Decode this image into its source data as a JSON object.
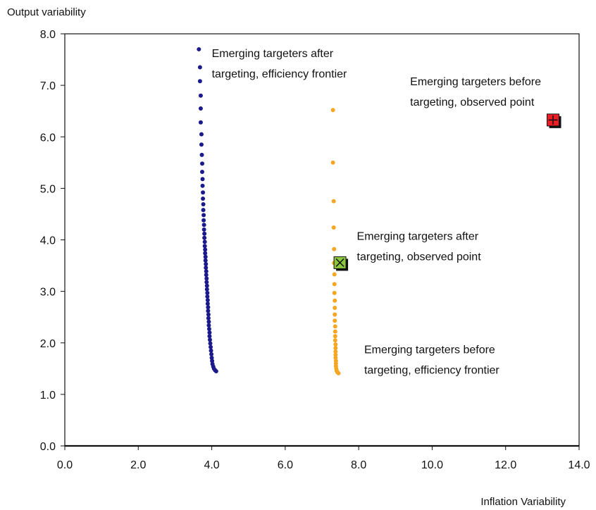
{
  "chart_data": {
    "type": "scatter",
    "title": "",
    "xlabel": "Inflation Variability",
    "ylabel": "Output variability",
    "xlim": [
      0,
      14
    ],
    "ylim": [
      0,
      8
    ],
    "x_ticks": [
      "0.0",
      "2.0",
      "4.0",
      "6.0",
      "8.0",
      "10.0",
      "12.0",
      "14.0"
    ],
    "y_ticks": [
      "0.0",
      "1.0",
      "2.0",
      "3.0",
      "4.0",
      "5.0",
      "6.0",
      "7.0",
      "8.0"
    ],
    "grid": false,
    "legend": "none",
    "series": [
      {
        "name": "Emerging targeters after targeting, efficiency frontier",
        "color": "#1a1a8c",
        "marker": "circle",
        "points": [
          [
            3.65,
            7.7
          ],
          [
            3.68,
            7.35
          ],
          [
            3.68,
            7.08
          ],
          [
            3.7,
            6.8
          ],
          [
            3.7,
            6.55
          ],
          [
            3.7,
            6.28
          ],
          [
            3.72,
            6.05
          ],
          [
            3.72,
            5.85
          ],
          [
            3.73,
            5.65
          ],
          [
            3.74,
            5.48
          ],
          [
            3.74,
            5.32
          ],
          [
            3.75,
            5.18
          ],
          [
            3.75,
            5.05
          ],
          [
            3.76,
            4.92
          ],
          [
            3.76,
            4.8
          ],
          [
            3.77,
            4.69
          ],
          [
            3.77,
            4.58
          ],
          [
            3.78,
            4.48
          ],
          [
            3.78,
            4.38
          ],
          [
            3.79,
            4.29
          ],
          [
            3.79,
            4.2
          ],
          [
            3.8,
            4.12
          ],
          [
            3.8,
            4.04
          ],
          [
            3.81,
            3.96
          ],
          [
            3.81,
            3.88
          ],
          [
            3.82,
            3.81
          ],
          [
            3.82,
            3.74
          ],
          [
            3.83,
            3.67
          ],
          [
            3.83,
            3.6
          ],
          [
            3.84,
            3.53
          ],
          [
            3.84,
            3.46
          ],
          [
            3.85,
            3.39
          ],
          [
            3.85,
            3.32
          ],
          [
            3.86,
            3.25
          ],
          [
            3.86,
            3.18
          ],
          [
            3.87,
            3.11
          ],
          [
            3.87,
            3.04
          ],
          [
            3.88,
            2.97
          ],
          [
            3.88,
            2.9
          ],
          [
            3.89,
            2.83
          ],
          [
            3.89,
            2.76
          ],
          [
            3.9,
            2.69
          ],
          [
            3.9,
            2.62
          ],
          [
            3.91,
            2.55
          ],
          [
            3.91,
            2.48
          ],
          [
            3.92,
            2.41
          ],
          [
            3.92,
            2.34
          ],
          [
            3.93,
            2.27
          ],
          [
            3.94,
            2.2
          ],
          [
            3.94,
            2.13
          ],
          [
            3.95,
            2.06
          ],
          [
            3.96,
            1.99
          ],
          [
            3.97,
            1.92
          ],
          [
            3.98,
            1.85
          ],
          [
            3.99,
            1.78
          ],
          [
            4.0,
            1.71
          ],
          [
            4.01,
            1.65
          ],
          [
            4.02,
            1.59
          ],
          [
            4.04,
            1.54
          ],
          [
            4.06,
            1.5
          ],
          [
            4.09,
            1.47
          ],
          [
            4.12,
            1.45
          ]
        ]
      },
      {
        "name": "Emerging targeters before targeting, efficiency frontier",
        "color": "#f5a623",
        "marker": "circle",
        "points": [
          [
            7.3,
            6.52
          ],
          [
            7.3,
            5.5
          ],
          [
            7.32,
            4.75
          ],
          [
            7.32,
            4.24
          ],
          [
            7.33,
            3.82
          ],
          [
            7.33,
            3.55
          ],
          [
            7.34,
            3.33
          ],
          [
            7.34,
            3.14
          ],
          [
            7.34,
            2.97
          ],
          [
            7.35,
            2.82
          ],
          [
            7.35,
            2.68
          ],
          [
            7.35,
            2.55
          ],
          [
            7.35,
            2.43
          ],
          [
            7.36,
            2.32
          ],
          [
            7.36,
            2.22
          ],
          [
            7.36,
            2.13
          ],
          [
            7.36,
            2.05
          ],
          [
            7.37,
            1.97
          ],
          [
            7.37,
            1.9
          ],
          [
            7.37,
            1.83
          ],
          [
            7.37,
            1.77
          ],
          [
            7.37,
            1.71
          ],
          [
            7.38,
            1.65
          ],
          [
            7.38,
            1.6
          ],
          [
            7.38,
            1.55
          ],
          [
            7.39,
            1.5
          ],
          [
            7.4,
            1.46
          ],
          [
            7.42,
            1.43
          ],
          [
            7.45,
            1.41
          ]
        ]
      },
      {
        "name": "Emerging targeters after targeting, observed point",
        "color": "#8dc63f",
        "marker": "square-x",
        "points": [
          [
            7.5,
            3.55
          ]
        ]
      },
      {
        "name": "Emerging targeters before targeting, observed point",
        "color": "#ee1c24",
        "marker": "square-plus",
        "points": [
          [
            13.3,
            6.32
          ]
        ]
      }
    ],
    "annotations": [
      {
        "lines": [
          "Emerging targeters after",
          "targeting, efficiency frontier"
        ],
        "x": 4.0,
        "y": 7.55
      },
      {
        "lines": [
          "Emerging targeters before",
          "targeting, observed point"
        ],
        "x": 9.4,
        "y": 7.0
      },
      {
        "lines": [
          "Emerging targeters after",
          "targeting, observed point"
        ],
        "x": 7.95,
        "y": 4.0
      },
      {
        "lines": [
          "Emerging targeters before",
          "targeting, efficiency frontier"
        ],
        "x": 8.15,
        "y": 1.8
      }
    ]
  }
}
